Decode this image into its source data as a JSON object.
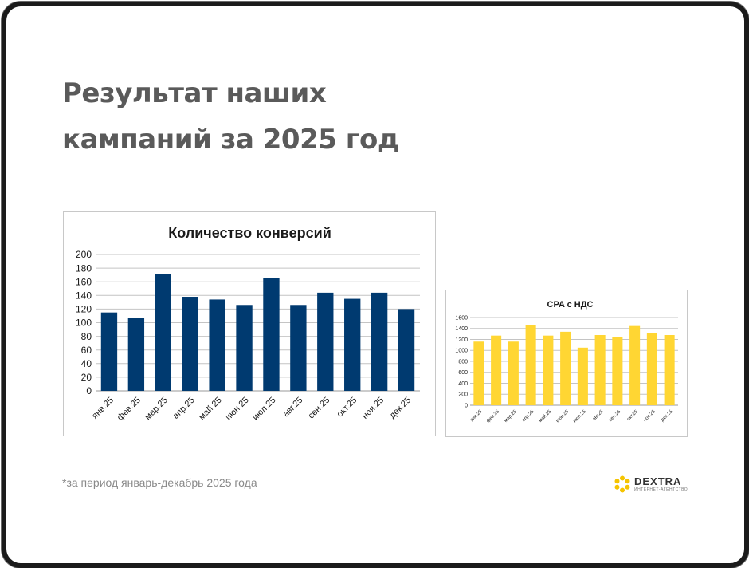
{
  "slide": {
    "title_line1": "Результат наших",
    "title_line2": "кампаний за 2025 год",
    "footnote": "*за период январь-декабрь 2025 года"
  },
  "logo": {
    "word": "DEXTRA",
    "subtitle": "ИНТЕРНЕТ-АГЕНТСТВО",
    "icon": "hexagon-flower-icon",
    "color": "#F5C400"
  },
  "chart_data": [
    {
      "type": "bar",
      "title": "Количество конверсий",
      "categories": [
        "янв.25",
        "фев.25",
        "мар.25",
        "апр.25",
        "май.25",
        "июн.25",
        "июл.25",
        "авг.25",
        "сен.25",
        "окт.25",
        "ноя.25",
        "дек.25"
      ],
      "values": [
        115,
        107,
        171,
        138,
        134,
        126,
        166,
        126,
        144,
        135,
        144,
        120
      ],
      "ylim": [
        0,
        200
      ],
      "yticks": [
        0,
        20,
        40,
        60,
        80,
        100,
        120,
        140,
        160,
        180,
        200
      ],
      "grid": true,
      "bar_color": "#003A70"
    },
    {
      "type": "bar",
      "title": "CPA с НДС",
      "categories": [
        "янв.25",
        "фев.25",
        "мар.25",
        "апр.25",
        "май.25",
        "июн.25",
        "июл.25",
        "авг.25",
        "сен.25",
        "окт.25",
        "ноя.25",
        "дек.25"
      ],
      "values": [
        1160,
        1270,
        1160,
        1465,
        1270,
        1340,
        1050,
        1280,
        1250,
        1445,
        1310,
        1280
      ],
      "ylim": [
        0,
        1600
      ],
      "yticks": [
        0,
        200,
        400,
        600,
        800,
        1000,
        1200,
        1400,
        1600
      ],
      "grid": true,
      "bar_color": "#FFD633"
    }
  ]
}
